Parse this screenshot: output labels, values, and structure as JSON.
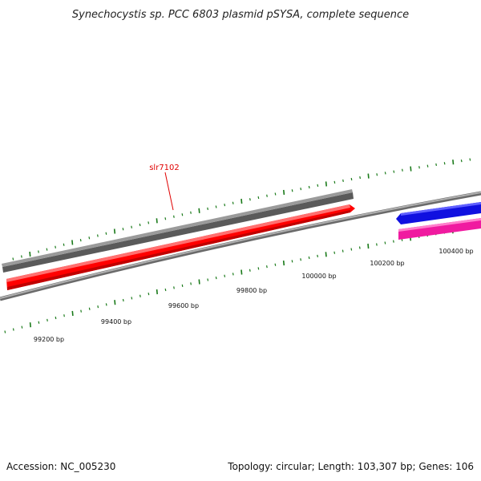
{
  "title": "Synechocystis sp. PCC 6803 plasmid pSYSA, complete sequence",
  "footer": {
    "accession": "Accession: NC_005230",
    "summary": "Topology: circular; Length: 103,307 bp; Genes: 106"
  },
  "colors": {
    "backbone": "#8a8a8a",
    "tick": "#1a7a1a",
    "gene_gray": "#6e6e6e",
    "gene_red": "#ff0000",
    "gene_blue": "#1010e0",
    "gene_pink": "#f01aa0",
    "label_red": "#e00000"
  },
  "scale_labels": [
    "99200 bp",
    "99400 bp",
    "99600 bp",
    "99800 bp",
    "100000 bp",
    "100200 bp",
    "100400 bp"
  ],
  "gene_labels": [
    {
      "name": "slr7102",
      "color": "#e00000"
    }
  ],
  "features": [
    {
      "name": "gray-gene",
      "color": "#6e6e6e",
      "strand": "forward"
    },
    {
      "name": "red-gene",
      "color": "#ff0000",
      "strand": "forward"
    },
    {
      "name": "blue-gene",
      "color": "#1010e0",
      "strand": "reverse"
    },
    {
      "name": "pink-gene",
      "color": "#f01aa0",
      "strand": "forward"
    }
  ]
}
